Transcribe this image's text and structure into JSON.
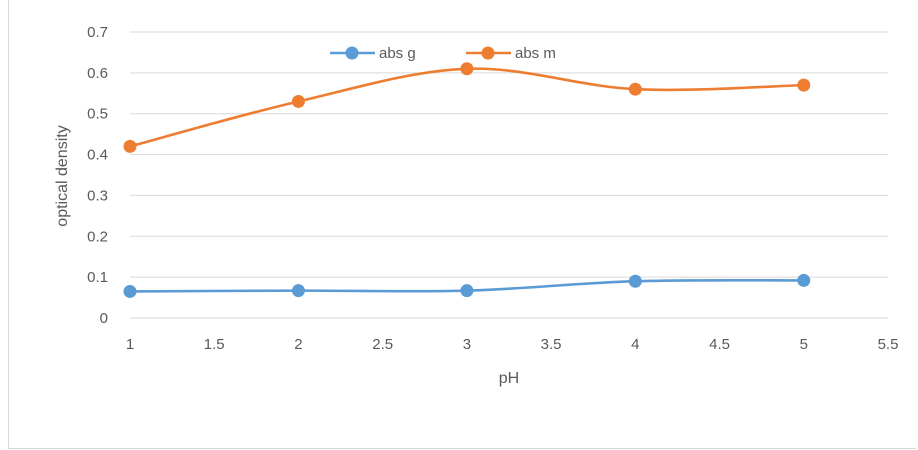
{
  "chart_data": {
    "type": "line",
    "xlabel": "pH",
    "ylabel": "optical density",
    "xlim": [
      1,
      5.5
    ],
    "ylim": [
      0,
      0.7
    ],
    "x_ticks": [
      "1",
      "1.5",
      "2",
      "2.5",
      "3",
      "3.5",
      "4",
      "4.5",
      "5",
      "5.5"
    ],
    "y_ticks": [
      "0",
      "0.1",
      "0.2",
      "0.3",
      "0.4",
      "0.5",
      "0.6",
      "0.7"
    ],
    "grid": "horizontal",
    "legend_position": "top",
    "smoothed": true,
    "x": [
      1,
      2,
      3,
      4,
      5
    ],
    "series": [
      {
        "name": "abs g",
        "color": "#5b9bd5",
        "values": [
          0.065,
          0.067,
          0.067,
          0.09,
          0.092
        ]
      },
      {
        "name": "abs m",
        "color": "#ed7d31",
        "values": [
          0.42,
          0.53,
          0.61,
          0.56,
          0.57
        ]
      }
    ]
  }
}
